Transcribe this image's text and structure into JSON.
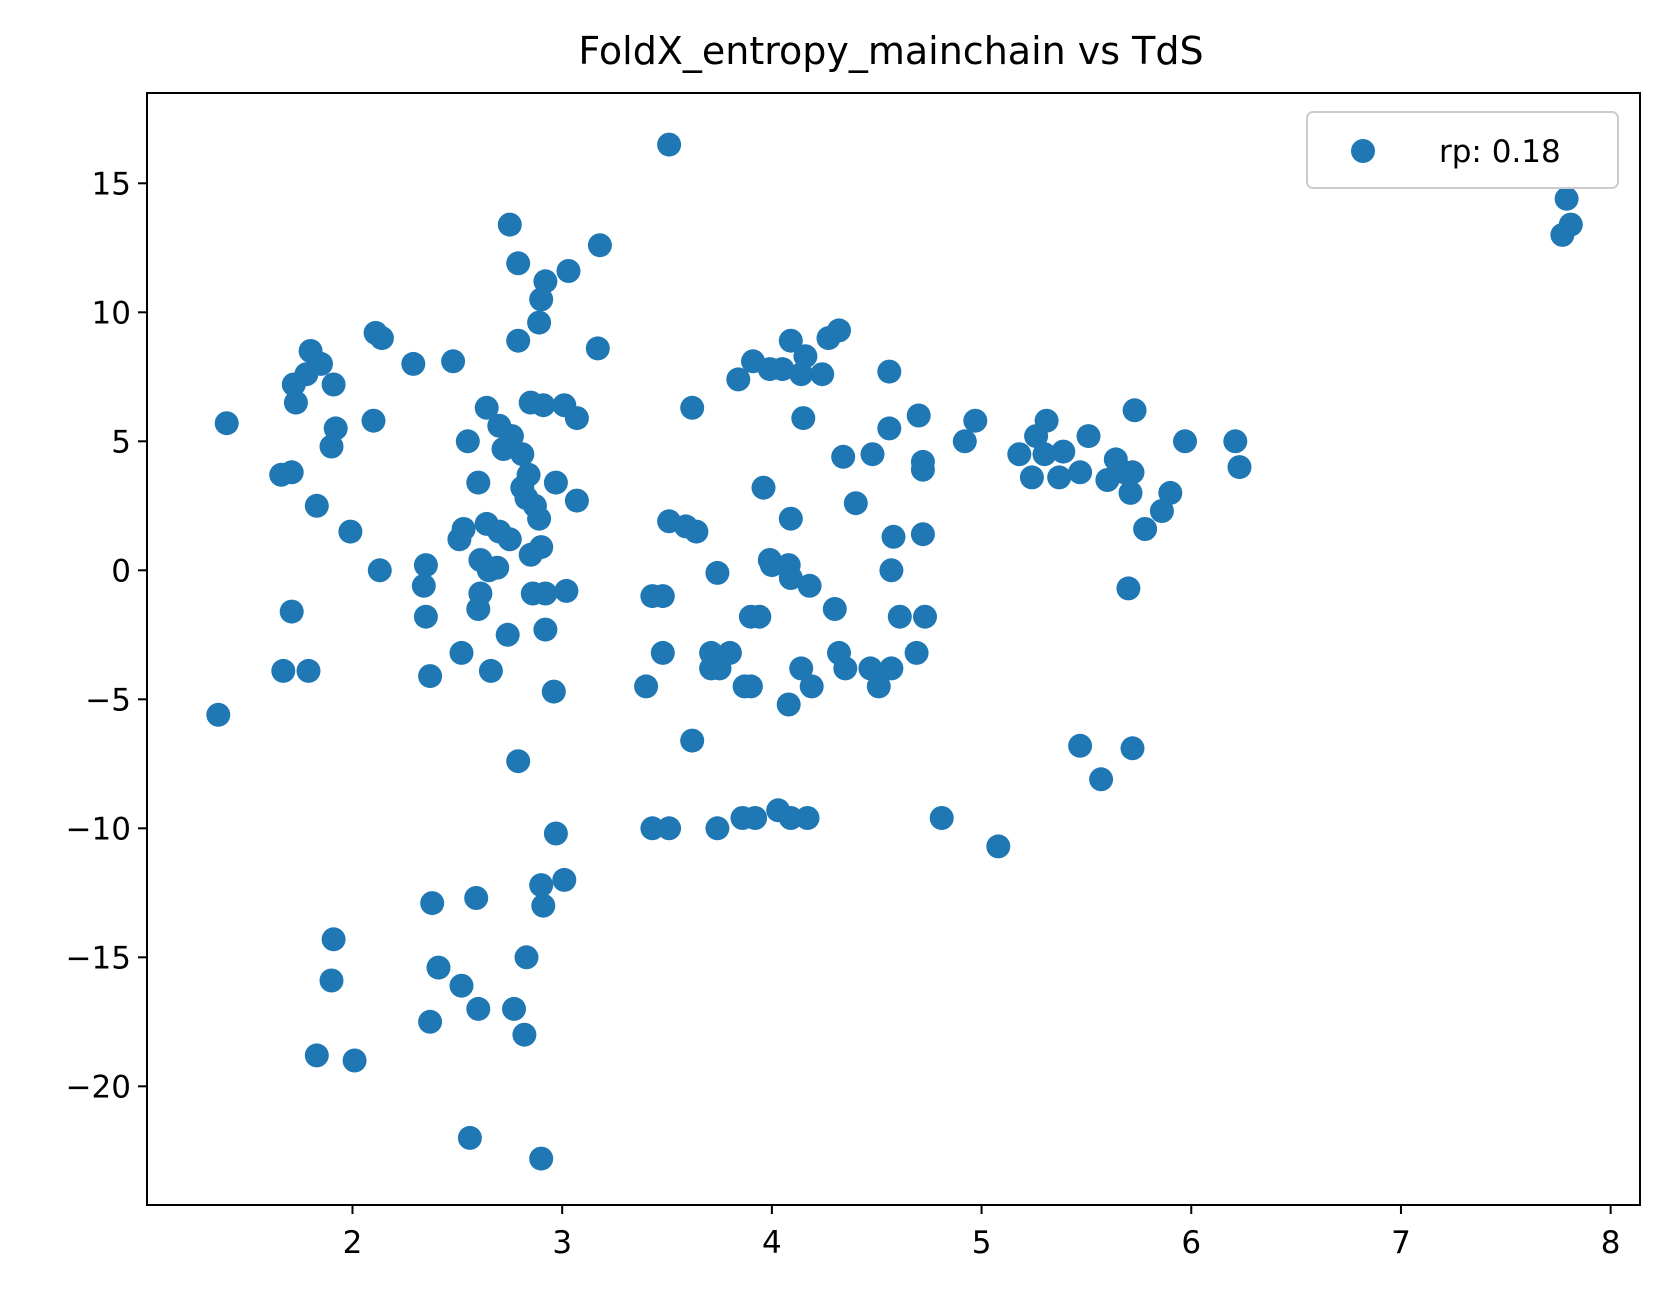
{
  "chart_data": {
    "type": "scatter",
    "title": "FoldX_entropy_mainchain vs TdS",
    "xlabel": "",
    "ylabel": "",
    "xlim": [
      1.02,
      8.14
    ],
    "ylim": [
      -24.6,
      18.5
    ],
    "x_ticks": [
      2,
      3,
      4,
      5,
      6,
      7,
      8
    ],
    "y_ticks": [
      -20,
      -15,
      -10,
      -5,
      0,
      5,
      10,
      15
    ],
    "x_tick_labels": [
      "2",
      "3",
      "4",
      "5",
      "6",
      "7",
      "8"
    ],
    "y_tick_labels": [
      "−20",
      "−15",
      "−10",
      "−5",
      "0",
      "5",
      "10",
      "15"
    ],
    "grid": false,
    "legend_position": "top-right",
    "colors": {
      "marker": "#1f77b4",
      "axes": "#000000",
      "legend_border": "#cccccc"
    },
    "series": [
      {
        "name": "rp: 0.18",
        "points": [
          [
            1.4,
            5.7
          ],
          [
            1.36,
            -5.6
          ],
          [
            1.66,
            3.7
          ],
          [
            1.71,
            3.8
          ],
          [
            1.72,
            7.2
          ],
          [
            1.73,
            6.5
          ],
          [
            1.71,
            -1.6
          ],
          [
            1.67,
            -3.9
          ],
          [
            1.8,
            8.5
          ],
          [
            1.85,
            8.0
          ],
          [
            1.78,
            7.6
          ],
          [
            1.91,
            7.2
          ],
          [
            1.92,
            5.5
          ],
          [
            1.9,
            4.8
          ],
          [
            1.83,
            2.5
          ],
          [
            1.79,
            -3.9
          ],
          [
            1.91,
            -14.3
          ],
          [
            1.9,
            -15.9
          ],
          [
            1.83,
            -18.8
          ],
          [
            1.99,
            1.5
          ],
          [
            2.01,
            -19.0
          ],
          [
            2.11,
            9.2
          ],
          [
            2.14,
            9.0
          ],
          [
            2.1,
            5.8
          ],
          [
            2.13,
            0.0
          ],
          [
            2.29,
            8.0
          ],
          [
            2.48,
            8.1
          ],
          [
            2.35,
            0.2
          ],
          [
            2.34,
            -0.6
          ],
          [
            2.35,
            -1.8
          ],
          [
            2.37,
            -4.1
          ],
          [
            2.38,
            -12.9
          ],
          [
            2.41,
            -15.4
          ],
          [
            2.37,
            -17.5
          ],
          [
            2.52,
            -16.1
          ],
          [
            2.52,
            -3.2
          ],
          [
            2.56,
            -22.0
          ],
          [
            2.55,
            5.0
          ],
          [
            2.53,
            1.6
          ],
          [
            2.51,
            1.2
          ],
          [
            2.64,
            6.3
          ],
          [
            2.7,
            5.6
          ],
          [
            2.6,
            3.4
          ],
          [
            2.64,
            1.8
          ],
          [
            2.7,
            1.5
          ],
          [
            2.75,
            1.2
          ],
          [
            2.61,
            0.4
          ],
          [
            2.65,
            0.0
          ],
          [
            2.69,
            0.1
          ],
          [
            2.61,
            -0.9
          ],
          [
            2.6,
            -1.5
          ],
          [
            2.66,
            -3.9
          ],
          [
            2.74,
            -2.5
          ],
          [
            2.59,
            -12.7
          ],
          [
            2.6,
            -17.0
          ],
          [
            2.75,
            13.4
          ],
          [
            2.79,
            11.9
          ],
          [
            2.79,
            8.9
          ],
          [
            2.76,
            5.2
          ],
          [
            2.81,
            4.5
          ],
          [
            2.72,
            4.7
          ],
          [
            2.84,
            3.7
          ],
          [
            2.81,
            3.2
          ],
          [
            2.83,
            2.8
          ],
          [
            2.87,
            2.5
          ],
          [
            2.89,
            2.0
          ],
          [
            2.85,
            0.6
          ],
          [
            2.9,
            0.9
          ],
          [
            2.86,
            -0.9
          ],
          [
            2.79,
            -7.4
          ],
          [
            2.83,
            -15.0
          ],
          [
            2.77,
            -17.0
          ],
          [
            2.82,
            -18.0
          ],
          [
            2.92,
            11.2
          ],
          [
            2.9,
            10.5
          ],
          [
            2.89,
            9.6
          ],
          [
            2.85,
            6.5
          ],
          [
            2.91,
            6.4
          ],
          [
            3.01,
            6.4
          ],
          [
            3.07,
            5.9
          ],
          [
            2.97,
            3.4
          ],
          [
            3.07,
            2.7
          ],
          [
            2.92,
            -0.9
          ],
          [
            3.02,
            -0.8
          ],
          [
            2.92,
            -2.3
          ],
          [
            2.96,
            -4.7
          ],
          [
            2.97,
            -10.2
          ],
          [
            2.9,
            -12.2
          ],
          [
            3.01,
            -12.0
          ],
          [
            2.91,
            -13.0
          ],
          [
            2.9,
            -22.8
          ],
          [
            3.03,
            11.6
          ],
          [
            3.18,
            12.6
          ],
          [
            3.17,
            8.6
          ],
          [
            3.51,
            16.5
          ],
          [
            3.4,
            -4.5
          ],
          [
            3.43,
            -1.0
          ],
          [
            3.48,
            -1.0
          ],
          [
            3.48,
            -3.2
          ],
          [
            3.51,
            1.9
          ],
          [
            3.59,
            1.7
          ],
          [
            3.64,
            1.5
          ],
          [
            3.43,
            -10.0
          ],
          [
            3.51,
            -10.0
          ],
          [
            3.62,
            6.3
          ],
          [
            3.62,
            -6.6
          ],
          [
            3.71,
            -3.2
          ],
          [
            3.71,
            -3.8
          ],
          [
            3.75,
            -3.8
          ],
          [
            3.74,
            -0.1
          ],
          [
            3.74,
            -10.0
          ],
          [
            3.8,
            -3.2
          ],
          [
            3.84,
            7.4
          ],
          [
            3.91,
            8.1
          ],
          [
            3.86,
            -9.6
          ],
          [
            3.92,
            -9.6
          ],
          [
            3.87,
            -4.5
          ],
          [
            3.9,
            -4.5
          ],
          [
            3.9,
            -1.8
          ],
          [
            3.94,
            -1.8
          ],
          [
            3.96,
            3.2
          ],
          [
            3.99,
            7.8
          ],
          [
            4.05,
            7.8
          ],
          [
            4.09,
            8.9
          ],
          [
            4.14,
            7.6
          ],
          [
            4.16,
            8.3
          ],
          [
            4.24,
            7.6
          ],
          [
            4.27,
            9.0
          ],
          [
            4.32,
            9.3
          ],
          [
            4.15,
            5.9
          ],
          [
            4.09,
            2.0
          ],
          [
            3.99,
            0.4
          ],
          [
            4.0,
            0.2
          ],
          [
            4.08,
            0.2
          ],
          [
            4.09,
            -0.3
          ],
          [
            4.18,
            -0.6
          ],
          [
            4.03,
            -9.3
          ],
          [
            4.09,
            -9.6
          ],
          [
            4.17,
            -9.6
          ],
          [
            4.08,
            -5.2
          ],
          [
            4.14,
            -3.8
          ],
          [
            4.19,
            -4.5
          ],
          [
            4.34,
            4.4
          ],
          [
            4.4,
            2.6
          ],
          [
            4.3,
            -1.5
          ],
          [
            4.32,
            -3.2
          ],
          [
            4.35,
            -3.8
          ],
          [
            4.48,
            4.5
          ],
          [
            4.56,
            5.5
          ],
          [
            4.56,
            7.7
          ],
          [
            4.47,
            -3.8
          ],
          [
            4.51,
            -4.5
          ],
          [
            4.58,
            1.3
          ],
          [
            4.57,
            0.0
          ],
          [
            4.61,
            -1.8
          ],
          [
            4.57,
            -3.8
          ],
          [
            4.7,
            6.0
          ],
          [
            4.72,
            4.2
          ],
          [
            4.72,
            3.9
          ],
          [
            4.72,
            1.4
          ],
          [
            4.73,
            -1.8
          ],
          [
            4.69,
            -3.2
          ],
          [
            4.81,
            -9.6
          ],
          [
            4.92,
            5.0
          ],
          [
            4.97,
            5.8
          ],
          [
            5.08,
            -10.7
          ],
          [
            5.18,
            4.5
          ],
          [
            5.24,
            3.6
          ],
          [
            5.26,
            5.2
          ],
          [
            5.31,
            5.8
          ],
          [
            5.3,
            4.5
          ],
          [
            5.37,
            3.6
          ],
          [
            5.39,
            4.6
          ],
          [
            5.47,
            3.8
          ],
          [
            5.51,
            5.2
          ],
          [
            5.47,
            -6.8
          ],
          [
            5.57,
            -8.1
          ],
          [
            5.6,
            3.5
          ],
          [
            5.64,
            4.3
          ],
          [
            5.68,
            3.8
          ],
          [
            5.72,
            3.8
          ],
          [
            5.71,
            3.0
          ],
          [
            5.73,
            6.2
          ],
          [
            5.7,
            -0.7
          ],
          [
            5.72,
            -6.9
          ],
          [
            5.78,
            1.6
          ],
          [
            5.86,
            2.3
          ],
          [
            5.9,
            3.0
          ],
          [
            5.97,
            5.0
          ],
          [
            6.21,
            5.0
          ],
          [
            6.23,
            4.0
          ],
          [
            7.79,
            14.4
          ],
          [
            7.81,
            13.4
          ],
          [
            7.77,
            13.0
          ]
        ]
      }
    ]
  }
}
